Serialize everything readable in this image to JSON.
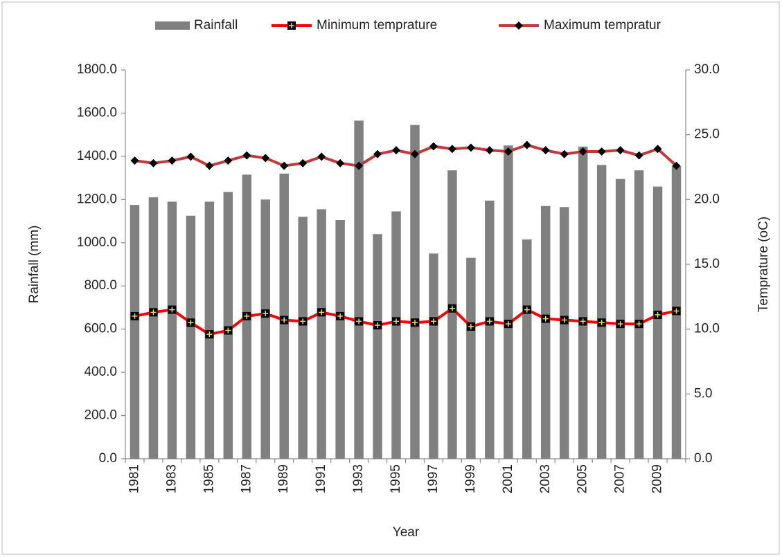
{
  "chart_data": {
    "type": "bar-line",
    "legend": "top",
    "x_label": "Year",
    "y_label": "Rainfall (mm)",
    "y2_label": "Temprature (oC)",
    "categories": [
      "1981",
      null,
      "1983",
      null,
      "1985",
      null,
      "1987",
      null,
      "1989",
      null,
      "1991",
      null,
      "1993",
      null,
      "1995",
      null,
      "1997",
      null,
      "1999",
      null,
      "2001",
      null,
      "2003",
      null,
      "2005",
      null,
      "2007",
      null,
      "2009",
      null
    ],
    "series": [
      {
        "name": "Rainfall",
        "type": "bar",
        "color": "#808080",
        "values": [
          1175,
          1210,
          1190,
          1125,
          1190,
          1235,
          1315,
          1200,
          1320,
          1120,
          1155,
          1105,
          1565,
          1040,
          1145,
          1545,
          950,
          1335,
          930,
          1195,
          1450,
          1015,
          1170,
          1165,
          1445,
          1360,
          1295,
          1335,
          1260,
          1355
        ]
      },
      {
        "name": "Minimum temprature",
        "type": "line",
        "axis": "y2",
        "color": "#ff0000",
        "marker": "square",
        "values": [
          11.0,
          11.3,
          11.5,
          10.5,
          9.6,
          9.9,
          11.0,
          11.2,
          10.7,
          10.6,
          11.3,
          11.0,
          10.6,
          10.3,
          10.6,
          10.5,
          10.6,
          11.6,
          10.2,
          10.6,
          10.4,
          11.5,
          10.8,
          10.7,
          10.6,
          10.5,
          10.4,
          10.4,
          11.1,
          11.4
        ]
      },
      {
        "name": "Maximum tempratur",
        "type": "line",
        "axis": "y2",
        "color": "#c0393b",
        "marker": "diamond",
        "values": [
          23.0,
          22.8,
          23.0,
          23.3,
          22.6,
          23.0,
          23.4,
          23.2,
          22.6,
          22.8,
          23.3,
          22.8,
          22.6,
          23.5,
          23.8,
          23.5,
          24.1,
          23.9,
          24.0,
          23.8,
          23.7,
          24.2,
          23.8,
          23.5,
          23.7,
          23.7,
          23.8,
          23.4,
          23.9,
          22.6
        ]
      }
    ],
    "ylim": [
      0,
      1800
    ],
    "yticks": [
      {
        "value": 0,
        "label": "0.0"
      },
      {
        "value": 200,
        "label": "200.0"
      },
      {
        "value": 400,
        "label": "400.0"
      },
      {
        "value": 600,
        "label": "600.0"
      },
      {
        "value": 800,
        "label": "800.0"
      },
      {
        "value": 1000,
        "label": "1000.0"
      },
      {
        "value": 1200,
        "label": "1200.0"
      },
      {
        "value": 1400,
        "label": "1400.0"
      },
      {
        "value": 1600,
        "label": "1600.0"
      },
      {
        "value": 1800,
        "label": "1800.0"
      }
    ],
    "y2lim": [
      0,
      30
    ],
    "y2ticks": [
      {
        "value": 0,
        "label": "0.0"
      },
      {
        "value": 5,
        "label": "5.0"
      },
      {
        "value": 10,
        "label": "10.0"
      },
      {
        "value": 15,
        "label": "15.0"
      },
      {
        "value": 20,
        "label": "20.0"
      },
      {
        "value": 25,
        "label": "25.0"
      },
      {
        "value": 30,
        "label": "30.0"
      }
    ]
  }
}
